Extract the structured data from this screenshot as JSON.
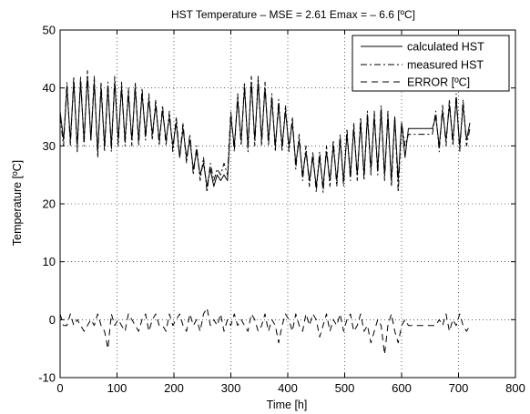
{
  "chart_data": {
    "type": "line",
    "title": "HST Temperature   –  MSE = 2.61     Emax = – 6.6 [ºC]",
    "xlabel": "Time [h]",
    "ylabel": "Temperature [ºC]",
    "xlim": [
      0,
      800
    ],
    "ylim": [
      -10,
      50
    ],
    "xticks": [
      0,
      100,
      200,
      300,
      400,
      500,
      600,
      700,
      800
    ],
    "yticks": [
      -10,
      0,
      10,
      20,
      30,
      40,
      50
    ],
    "grid": true,
    "legend_position": "top-right",
    "series": [
      {
        "name": "calculated HST",
        "style": "solid",
        "x": [
          0,
          6,
          12,
          18,
          24,
          30,
          36,
          42,
          48,
          54,
          60,
          66,
          72,
          78,
          84,
          90,
          96,
          102,
          108,
          114,
          120,
          126,
          132,
          138,
          144,
          150,
          156,
          162,
          168,
          174,
          180,
          186,
          192,
          198,
          204,
          210,
          216,
          222,
          228,
          234,
          240,
          246,
          252,
          258,
          264,
          270,
          276,
          282,
          288,
          294,
          300,
          306,
          312,
          318,
          324,
          330,
          336,
          342,
          348,
          354,
          360,
          366,
          372,
          378,
          384,
          390,
          396,
          402,
          408,
          414,
          420,
          426,
          432,
          438,
          444,
          450,
          456,
          462,
          468,
          474,
          480,
          486,
          492,
          498,
          504,
          510,
          516,
          522,
          528,
          534,
          540,
          546,
          552,
          558,
          564,
          570,
          576,
          582,
          588,
          594,
          600,
          606,
          612,
          618,
          624,
          630,
          636,
          642,
          648,
          654,
          660,
          666,
          672,
          678,
          684,
          690,
          696,
          702,
          708,
          714,
          720
        ],
        "values": [
          36,
          31,
          40,
          31,
          41,
          30,
          41,
          31,
          42,
          31,
          41,
          29,
          40,
          30,
          40,
          30,
          41,
          31,
          40,
          31,
          39,
          31,
          40,
          31,
          39,
          32,
          38,
          32,
          37,
          31,
          36,
          31,
          35,
          30,
          34,
          28,
          33,
          28,
          31,
          26,
          29,
          25,
          27,
          23,
          26,
          23,
          25,
          24,
          25,
          24,
          35,
          30,
          38,
          31,
          40,
          30,
          41,
          31,
          41,
          31,
          40,
          31,
          38,
          30,
          37,
          30,
          36,
          30,
          34,
          27,
          31,
          25,
          29,
          24,
          28,
          23,
          28,
          23,
          29,
          24,
          30,
          24,
          31,
          24,
          32,
          25,
          33,
          25,
          34,
          25,
          35,
          26,
          35,
          26,
          36,
          25,
          35,
          24,
          35,
          24,
          34,
          28,
          33,
          33,
          33,
          33,
          33,
          33,
          33,
          33,
          35,
          30,
          36,
          31,
          37,
          31,
          38,
          30,
          37,
          31,
          34
        ]
      },
      {
        "name": "measured HST",
        "style": "dashdot",
        "x": [
          0,
          6,
          12,
          18,
          24,
          30,
          36,
          42,
          48,
          54,
          60,
          66,
          72,
          78,
          84,
          90,
          96,
          102,
          108,
          114,
          120,
          126,
          132,
          138,
          144,
          150,
          156,
          162,
          168,
          174,
          180,
          186,
          192,
          198,
          204,
          210,
          216,
          222,
          228,
          234,
          240,
          246,
          252,
          258,
          264,
          270,
          276,
          282,
          288,
          294,
          300,
          306,
          312,
          318,
          324,
          330,
          336,
          342,
          348,
          354,
          360,
          366,
          372,
          378,
          384,
          390,
          396,
          402,
          408,
          414,
          420,
          426,
          432,
          438,
          444,
          450,
          456,
          462,
          468,
          474,
          480,
          486,
          492,
          498,
          504,
          510,
          516,
          522,
          528,
          534,
          540,
          546,
          552,
          558,
          564,
          570,
          576,
          582,
          588,
          594,
          600,
          606,
          612,
          618,
          624,
          630,
          636,
          642,
          648,
          654,
          660,
          666,
          672,
          678,
          684,
          690,
          696,
          702,
          708,
          714,
          720
        ],
        "values": [
          35,
          30,
          41,
          30,
          42,
          29,
          42,
          30,
          43,
          31,
          42,
          28,
          41,
          29,
          41,
          29,
          42,
          30,
          41,
          30,
          40,
          30,
          41,
          30,
          40,
          31,
          39,
          31,
          38,
          30,
          37,
          30,
          36,
          29,
          35,
          28,
          34,
          27,
          32,
          25,
          30,
          24,
          28,
          22,
          27,
          24,
          26,
          25,
          27,
          25,
          36,
          29,
          39,
          30,
          41,
          29,
          42,
          30,
          42,
          30,
          41,
          30,
          39,
          29,
          38,
          29,
          37,
          29,
          35,
          26,
          32,
          24,
          30,
          23,
          29,
          22,
          29,
          22,
          30,
          23,
          31,
          23,
          32,
          23,
          33,
          24,
          34,
          24,
          35,
          24,
          36,
          25,
          36,
          25,
          37,
          24,
          36,
          23,
          35,
          22,
          34,
          30,
          32,
          32,
          32,
          32,
          32,
          32,
          32,
          32,
          36,
          29,
          37,
          30,
          38,
          30,
          39,
          29,
          38,
          30,
          33
        ]
      },
      {
        "name": "ERROR [ºC]",
        "style": "dashed",
        "x": [
          0,
          6,
          12,
          18,
          24,
          30,
          36,
          42,
          48,
          54,
          60,
          66,
          72,
          78,
          84,
          90,
          96,
          102,
          108,
          114,
          120,
          126,
          132,
          138,
          144,
          150,
          156,
          162,
          168,
          174,
          180,
          186,
          192,
          198,
          204,
          210,
          216,
          222,
          228,
          234,
          240,
          246,
          252,
          258,
          264,
          270,
          276,
          282,
          288,
          294,
          300,
          306,
          312,
          318,
          324,
          330,
          336,
          342,
          348,
          354,
          360,
          366,
          372,
          378,
          384,
          390,
          396,
          402,
          408,
          414,
          420,
          426,
          432,
          438,
          444,
          450,
          456,
          462,
          468,
          474,
          480,
          486,
          492,
          498,
          504,
          510,
          516,
          522,
          528,
          534,
          540,
          546,
          552,
          558,
          564,
          570,
          576,
          582,
          588,
          594,
          600,
          606,
          612,
          618,
          624,
          630,
          636,
          642,
          648,
          654,
          660,
          666,
          672,
          678,
          684,
          690,
          696,
          702,
          708,
          714,
          720
        ],
        "values": [
          1,
          -1,
          -1,
          1,
          -1,
          0,
          -1,
          -2,
          -1,
          0,
          -1,
          1,
          -1,
          -2,
          -5,
          1,
          -1,
          0,
          -1,
          -2,
          1,
          0,
          -1,
          -2,
          0,
          1,
          -2,
          0,
          1,
          -1,
          -1,
          -2,
          1,
          -1,
          0,
          1,
          -1,
          -2,
          1,
          -1,
          0,
          -2,
          1,
          2,
          -1,
          0,
          -1,
          1,
          -2,
          0,
          -1,
          1,
          -1,
          0,
          -1,
          -2,
          1,
          0,
          -2,
          -1,
          1,
          -2,
          0,
          -1,
          -4,
          -1,
          1,
          0,
          -2,
          1,
          -1,
          -2,
          1,
          -1,
          1,
          0,
          -3,
          -1,
          1,
          -2,
          0,
          -1,
          1,
          -2,
          0,
          1,
          -2,
          -1,
          1,
          -2,
          -1,
          -4,
          -2,
          0,
          -1,
          -6,
          -1,
          1,
          -2,
          -4,
          -1,
          0,
          -1,
          -1,
          -1,
          -1,
          -1,
          -1,
          -1,
          -1,
          -1,
          0,
          -1,
          1,
          -2,
          0,
          -1,
          1,
          -1,
          -2,
          -1
        ]
      }
    ]
  }
}
